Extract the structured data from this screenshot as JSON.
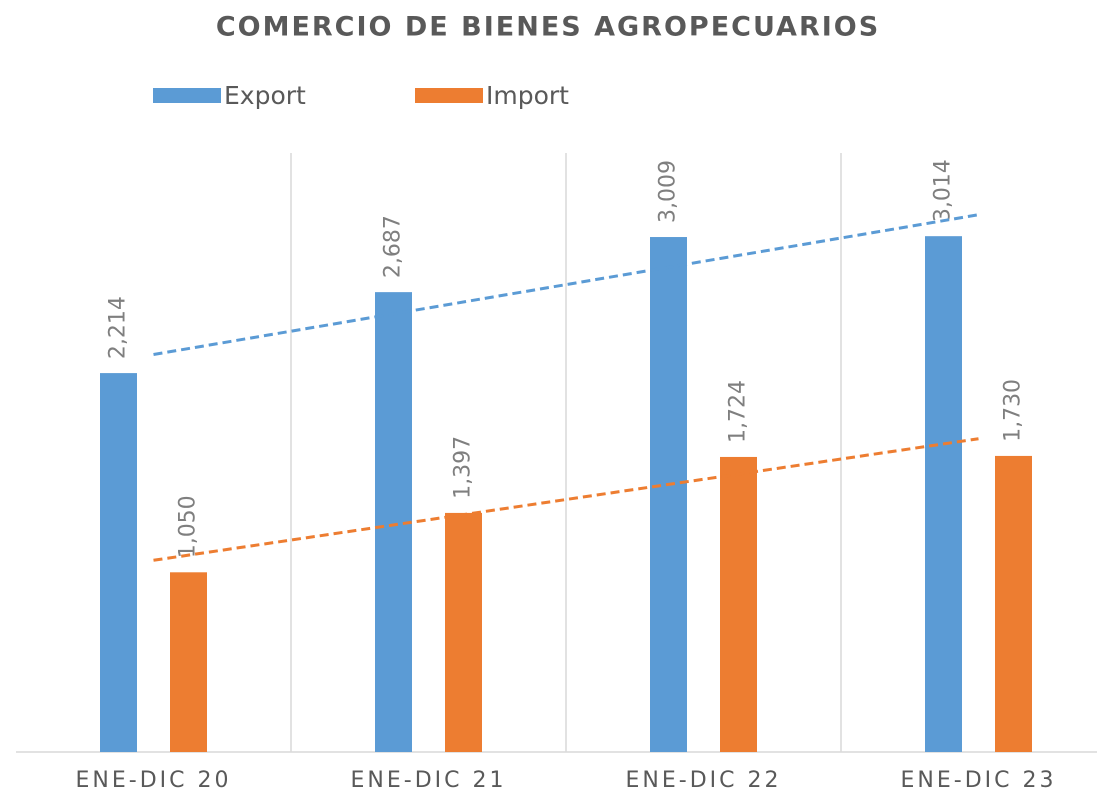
{
  "chart_data": {
    "type": "bar",
    "title": "COMERCIO DE BIENES AGROPECUARIOS",
    "categories": [
      "ENE-DIC 20",
      "ENE-DIC 21",
      "ENE-DIC 22",
      "ENE-DIC 23"
    ],
    "series": [
      {
        "name": "Export",
        "color": "#5b9bd5",
        "values": [
          2214,
          2687,
          3009,
          3014
        ],
        "value_labels": [
          "2,214",
          "2,687",
          "3,009",
          "3,014"
        ]
      },
      {
        "name": "Import",
        "color": "#ed7d31",
        "values": [
          1050,
          1397,
          1724,
          1730
        ],
        "value_labels": [
          "1,050",
          "1,397",
          "1,724",
          "1,730"
        ]
      }
    ],
    "ylim": [
      0,
      3500
    ],
    "trendline": "linear",
    "legend": "top"
  }
}
